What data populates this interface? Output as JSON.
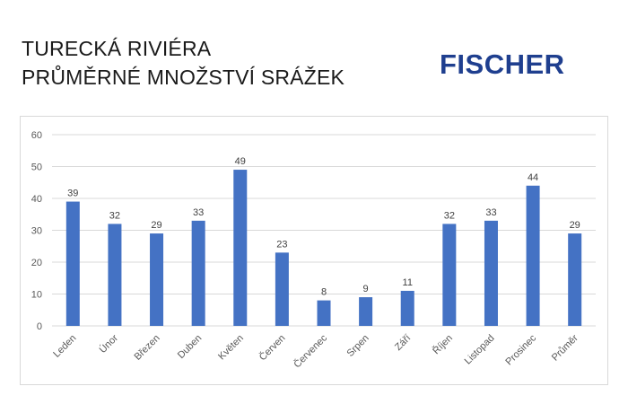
{
  "header": {
    "title_line1": "TURECKÁ RIVIÉRA",
    "title_line2": "PRŮMĚRNÉ MNOŽSTVÍ SRÁŽEK"
  },
  "logo": {
    "text": "FISCHER"
  },
  "colors": {
    "bar": "#4472c4",
    "grid": "#d9d9d9",
    "logo": "#1f3f8f"
  },
  "chart_data": {
    "type": "bar",
    "title": "",
    "xlabel": "",
    "ylabel": "",
    "categories": [
      "Leden",
      "Únor",
      "Březen",
      "Duben",
      "Květen",
      "Červen",
      "Červenec",
      "Srpen",
      "Září",
      "Říjen",
      "Listopad",
      "Prosinec",
      "Průměr"
    ],
    "values": [
      39,
      32,
      29,
      33,
      49,
      23,
      8,
      9,
      11,
      32,
      33,
      44,
      29
    ],
    "data_labels": [
      "39",
      "32",
      "29",
      "33",
      "49",
      "23",
      "8",
      "9",
      "11",
      "32",
      "33",
      "44",
      "29"
    ],
    "ylim": [
      0,
      60
    ],
    "yticks": [
      "0",
      "10",
      "20",
      "30",
      "40",
      "50",
      "60"
    ],
    "grid": true,
    "legend": "none"
  }
}
